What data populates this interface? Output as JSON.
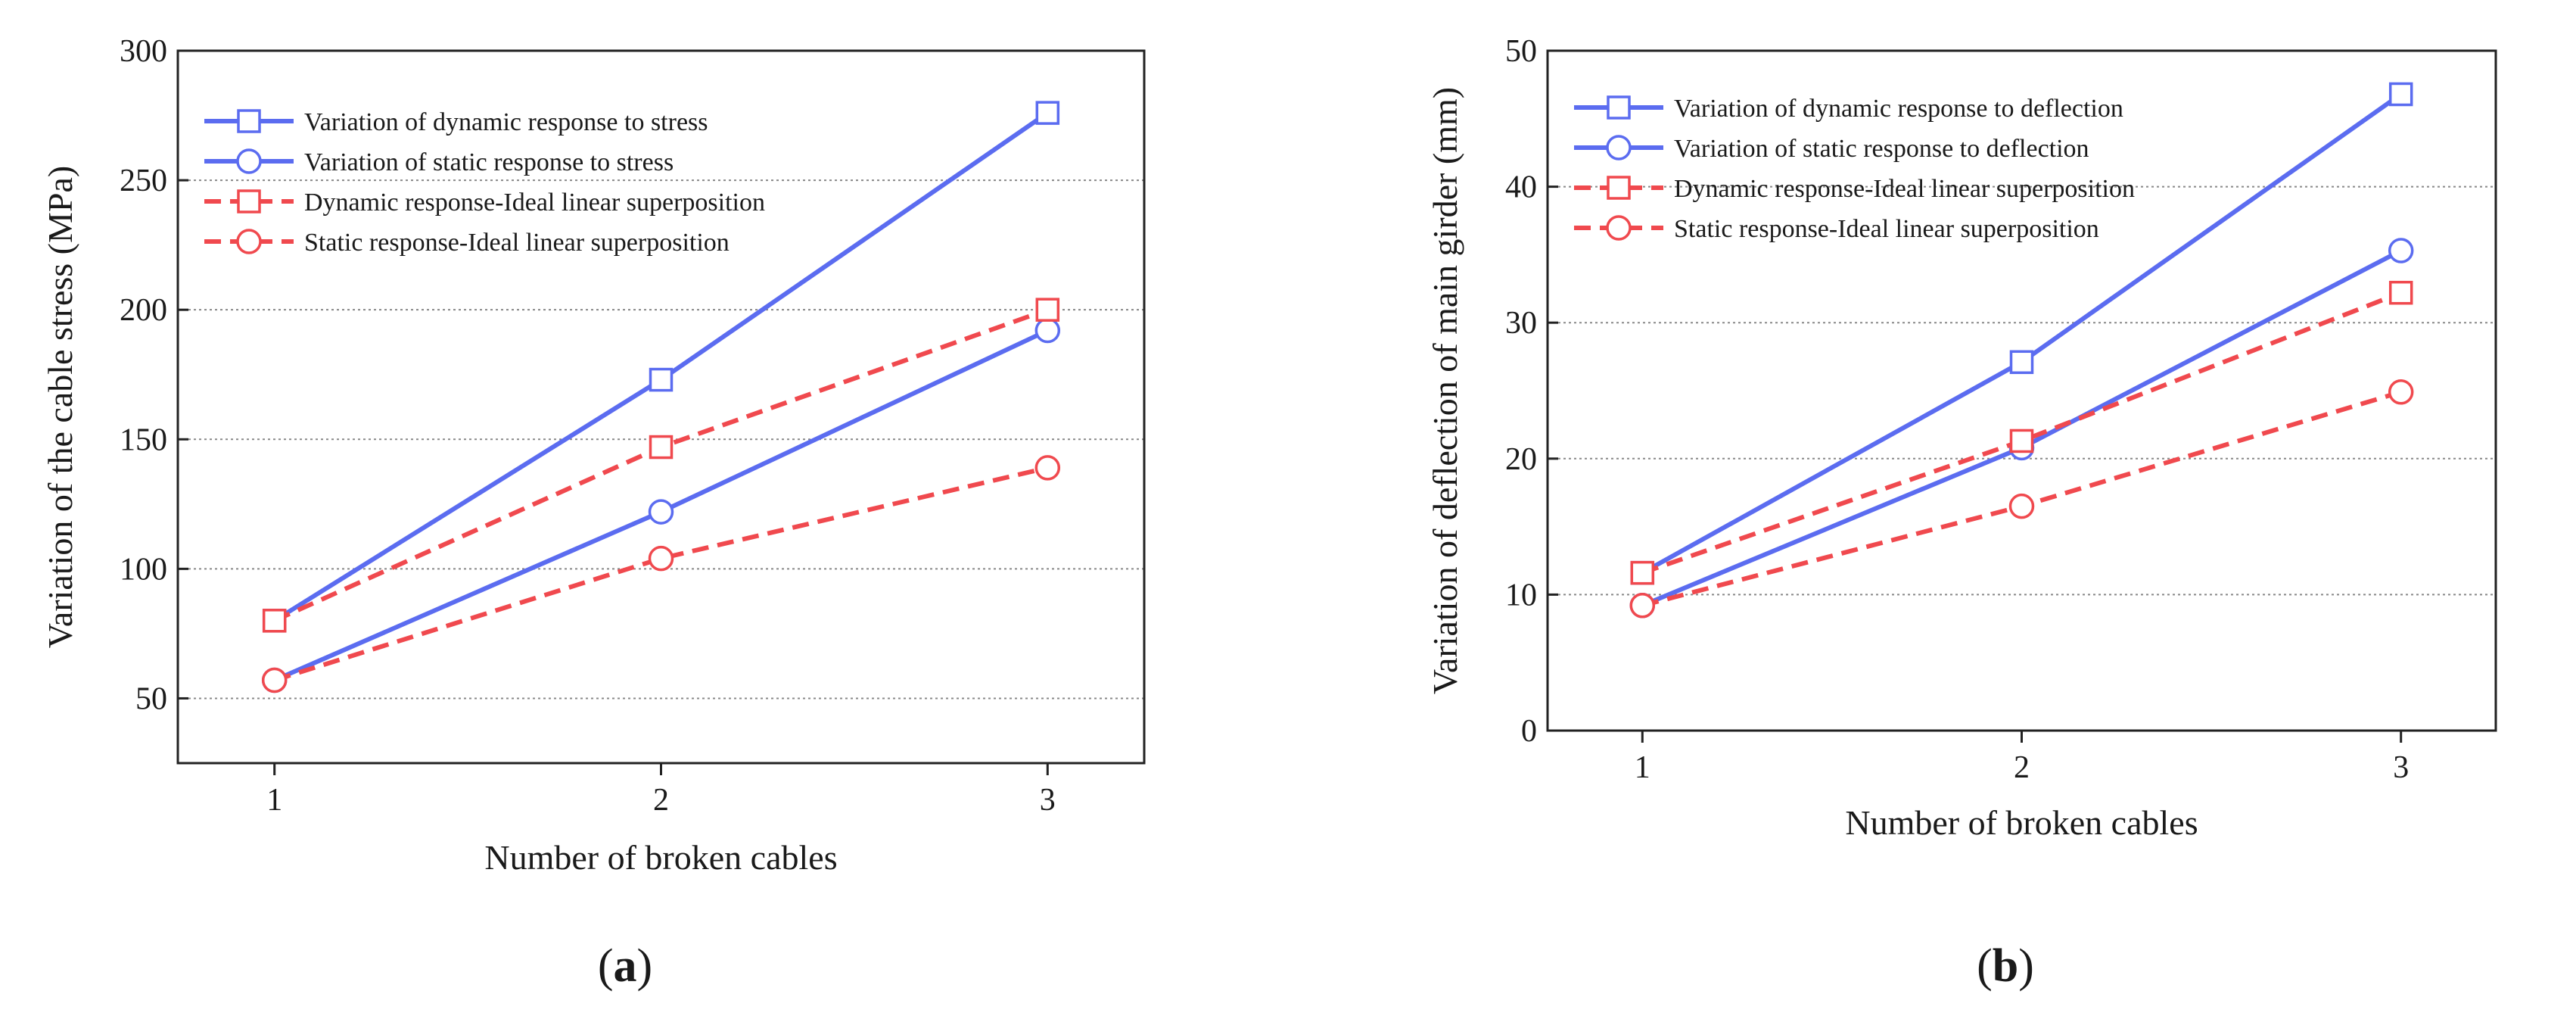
{
  "chart_data": [
    {
      "panel": "a",
      "type": "line",
      "xlabel": "Number of broken cables",
      "ylabel": "Variation of the cable stress (MPa)",
      "xlim": [
        0.75,
        3.25
      ],
      "ylim": [
        25,
        300
      ],
      "xticks": [
        1,
        2,
        3
      ],
      "yticks": [
        50,
        100,
        150,
        200,
        250,
        300
      ],
      "grid": "horizontal dotted",
      "legend_position": "top-left",
      "x": [
        1,
        2,
        3
      ],
      "series": [
        {
          "name": "Variation of dynamic response to stress",
          "values": [
            80,
            173,
            276
          ],
          "color": "#5b6cf0",
          "style": "solid",
          "marker": "square"
        },
        {
          "name": "Variation of static response to stress",
          "values": [
            57,
            122,
            192
          ],
          "color": "#5b6cf0",
          "style": "solid",
          "marker": "circle"
        },
        {
          "name": "Dynamic response-Ideal linear superposition",
          "values": [
            80,
            147,
            200
          ],
          "color": "#f0494e",
          "style": "dashed",
          "marker": "square"
        },
        {
          "name": "Static response-Ideal linear superposition",
          "values": [
            57,
            104,
            139
          ],
          "color": "#f0494e",
          "style": "dashed",
          "marker": "circle"
        }
      ],
      "caption": {
        "open": "(",
        "letter": "a",
        "close": ")"
      }
    },
    {
      "panel": "b",
      "type": "line",
      "xlabel": "Number of broken cables",
      "ylabel": "Variation of deflection of main girder (mm)",
      "xlim": [
        0.75,
        3.25
      ],
      "ylim": [
        0,
        50
      ],
      "xticks": [
        1,
        2,
        3
      ],
      "yticks": [
        0,
        10,
        20,
        30,
        40,
        50
      ],
      "grid": "horizontal dotted",
      "legend_position": "top-left",
      "x": [
        1,
        2,
        3
      ],
      "series": [
        {
          "name": "Variation of dynamic response to deflection",
          "values": [
            11.6,
            27.1,
            46.8
          ],
          "color": "#5b6cf0",
          "style": "solid",
          "marker": "square"
        },
        {
          "name": "Variation of static response to deflection",
          "values": [
            9.2,
            20.8,
            35.3
          ],
          "color": "#5b6cf0",
          "style": "solid",
          "marker": "circle"
        },
        {
          "name": "Dynamic response-Ideal linear superposition",
          "values": [
            11.6,
            21.3,
            32.2
          ],
          "color": "#f0494e",
          "style": "dashed",
          "marker": "square"
        },
        {
          "name": "Static response-Ideal linear superposition",
          "values": [
            9.2,
            16.5,
            24.9
          ],
          "color": "#f0494e",
          "style": "dashed",
          "marker": "circle"
        }
      ],
      "caption": {
        "open": "(",
        "letter": "b",
        "close": ")"
      }
    }
  ]
}
